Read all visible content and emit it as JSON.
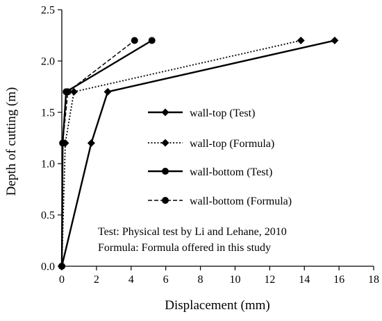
{
  "chart_data": {
    "type": "line",
    "xlabel": "Displacement (mm)",
    "ylabel": "Depth of cutting (m)",
    "xlim": [
      0,
      18
    ],
    "ylim": [
      0,
      2.5
    ],
    "xticks": [
      "0",
      "2",
      "4",
      "6",
      "8",
      "10",
      "12",
      "14",
      "16",
      "18"
    ],
    "yticks": [
      "0.0",
      "0.5",
      "1.0",
      "1.5",
      "2.0",
      "2.5"
    ],
    "grid": false,
    "legend_position": "center-right",
    "series": [
      {
        "name": "wall-top (Test)",
        "marker": "diamond",
        "line_style": "solid",
        "color": "#000000",
        "points": [
          [
            0,
            0
          ],
          [
            1.7,
            1.2
          ],
          [
            2.65,
            1.7
          ],
          [
            15.75,
            2.2
          ]
        ]
      },
      {
        "name": "wall-top (Formula)",
        "marker": "diamond",
        "line_style": "dotted",
        "color": "#000000",
        "points": [
          [
            0,
            0
          ],
          [
            0.2,
            1.2
          ],
          [
            0.7,
            1.7
          ],
          [
            13.8,
            2.2
          ]
        ]
      },
      {
        "name": "wall-bottom (Test)",
        "marker": "circle",
        "line_style": "solid",
        "color": "#000000",
        "points": [
          [
            0,
            0
          ],
          [
            0.05,
            1.2
          ],
          [
            0.25,
            1.7
          ],
          [
            5.2,
            2.2
          ]
        ]
      },
      {
        "name": "wall-bottom (Formula)",
        "marker": "circle",
        "line_style": "dashed",
        "color": "#000000",
        "points": [
          [
            0,
            0
          ],
          [
            0.05,
            1.2
          ],
          [
            0.35,
            1.7
          ],
          [
            4.2,
            2.2
          ]
        ]
      }
    ],
    "annotations": [
      "Test: Physical test by Li and Lehane, 2010",
      "Formula: Formula offered in this study"
    ]
  }
}
